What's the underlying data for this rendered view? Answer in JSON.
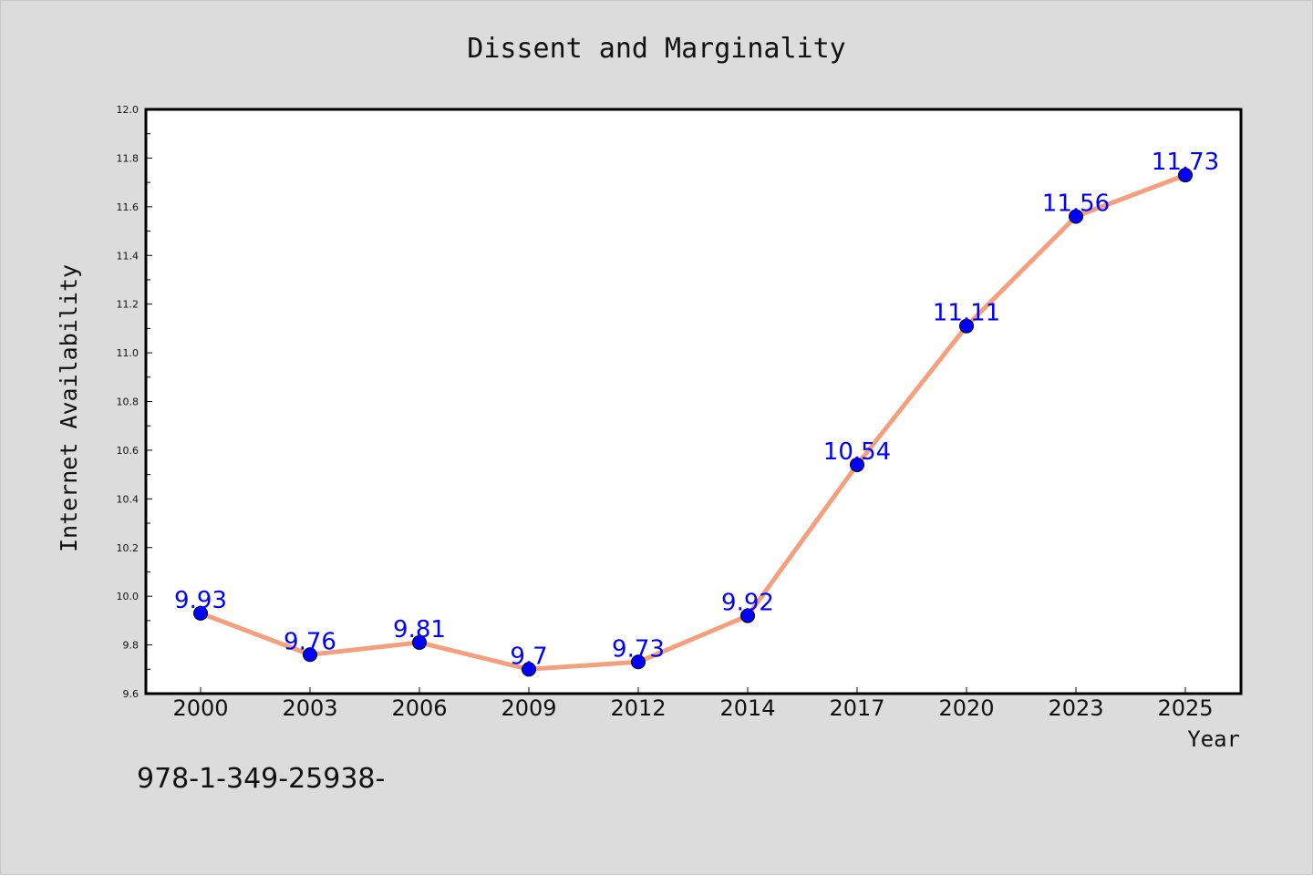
{
  "chart_data": {
    "type": "line",
    "title": "Dissent and Marginality",
    "xlabel": "Year",
    "ylabel": "Internet Availability",
    "categories": [
      "2000",
      "2003",
      "2006",
      "2009",
      "2012",
      "2014",
      "2017",
      "2020",
      "2023",
      "2025"
    ],
    "series": [
      {
        "values": [
          9.93,
          9.76,
          9.81,
          9.7,
          9.73,
          9.92,
          10.54,
          11.11,
          11.56,
          11.73
        ],
        "labels": [
          "9.93",
          "9.76",
          "9.81",
          "9.7",
          "9.73",
          "9.92",
          "10.54",
          "11.11",
          "11.56",
          "11.73"
        ],
        "line_color": "#f4a07f",
        "marker_color": "#0000ff"
      }
    ],
    "ylim": [
      9.6,
      12.0
    ],
    "yticks": [
      "9.6",
      "9.8",
      "10.0",
      "10.2",
      "10.4",
      "10.6",
      "10.8",
      "11.0",
      "11.2",
      "11.4",
      "11.6",
      "11.8",
      "12.0"
    ],
    "grid": false,
    "legend": "none"
  },
  "annotation": "978-1-349-25938-",
  "colors": {
    "background": "#dcdcdc",
    "plot_background": "#ffffff"
  }
}
